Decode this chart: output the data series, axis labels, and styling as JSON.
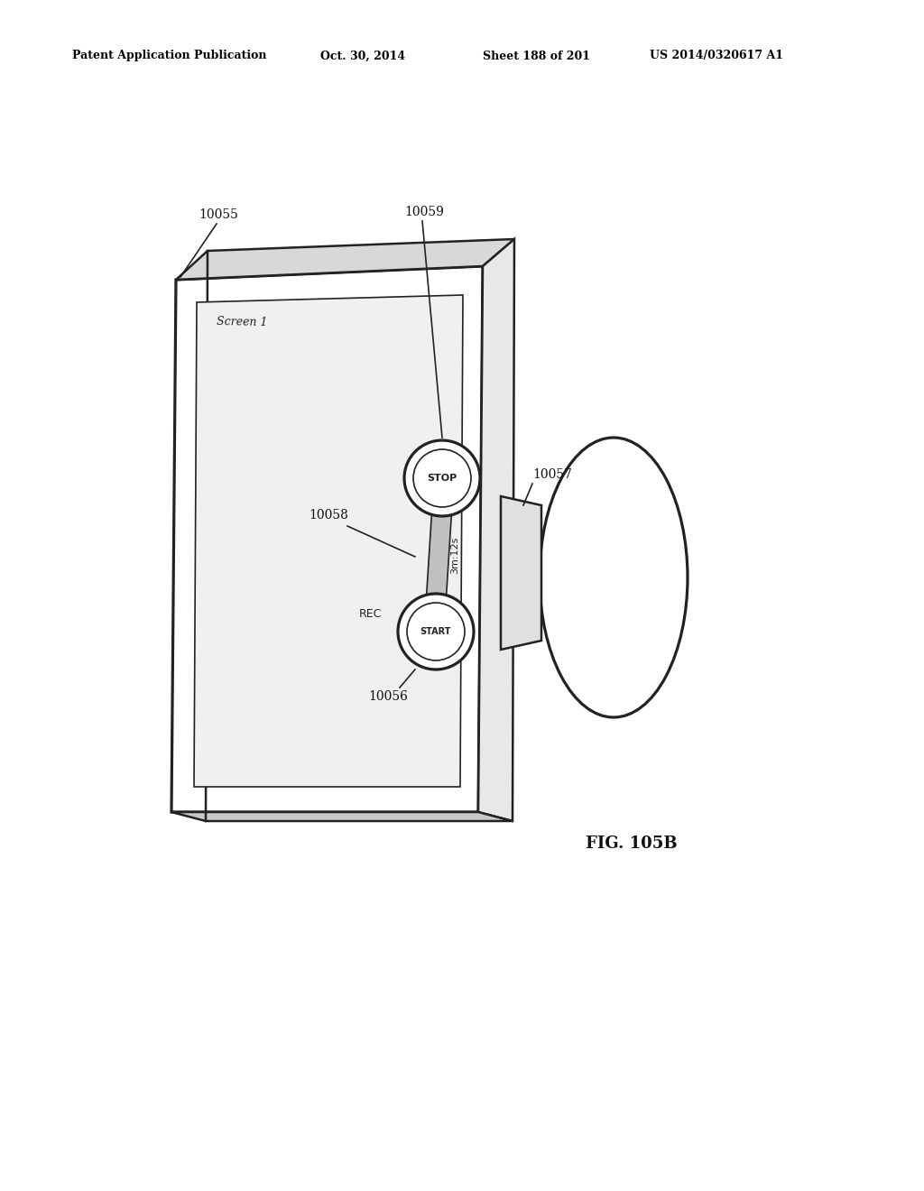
{
  "bg_color": "#ffffff",
  "header_text": "Patent Application Publication",
  "header_date": "Oct. 30, 2014",
  "header_sheet": "Sheet 188 of 201",
  "header_patent": "US 2014/0320617 A1",
  "fig_label": "FIG. 105B",
  "screen1_label": "Screen 1",
  "stop_label": "STOP",
  "start_label": "START",
  "rec_label": "REC",
  "time_label": "3m:12s",
  "ref_10055": "10055",
  "ref_10059": "10059",
  "ref_10058": "10058",
  "ref_10057": "10057",
  "ref_10056": "10056"
}
